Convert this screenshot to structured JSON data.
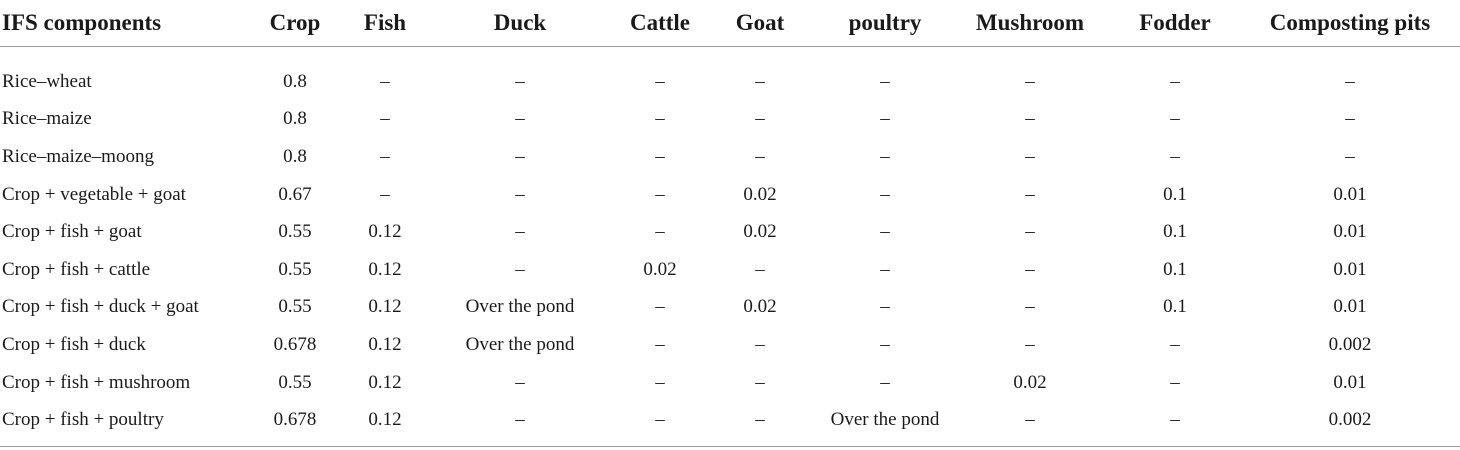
{
  "table": {
    "headers": [
      "IFS components",
      "Crop",
      "Fish",
      "Duck",
      "Cattle",
      "Goat",
      "poultry",
      "Mushroom",
      "Fodder",
      "Composting pits"
    ],
    "rows": [
      [
        "Rice–wheat",
        "0.8",
        "–",
        "–",
        "–",
        "–",
        "–",
        "–",
        "–",
        "–"
      ],
      [
        "Rice–maize",
        "0.8",
        "–",
        "–",
        "–",
        "–",
        "–",
        "–",
        "–",
        "–"
      ],
      [
        "Rice–maize–moong",
        "0.8",
        "–",
        "–",
        "–",
        "–",
        "–",
        "–",
        "–",
        "–"
      ],
      [
        "Crop + vegetable + goat",
        "0.67",
        "–",
        "–",
        "–",
        "0.02",
        "–",
        "–",
        "0.1",
        "0.01"
      ],
      [
        "Crop + fish + goat",
        "0.55",
        "0.12",
        "–",
        "–",
        "0.02",
        "–",
        "–",
        "0.1",
        "0.01"
      ],
      [
        "Crop + fish + cattle",
        "0.55",
        "0.12",
        "–",
        "0.02",
        "–",
        "–",
        "–",
        "0.1",
        "0.01"
      ],
      [
        "Crop + fish + duck + goat",
        "0.55",
        "0.12",
        "Over the pond",
        "–",
        "0.02",
        "–",
        "–",
        "0.1",
        "0.01"
      ],
      [
        "Crop + fish + duck",
        "0.678",
        "0.12",
        "Over the pond",
        "–",
        "–",
        "–",
        "–",
        "–",
        "0.002"
      ],
      [
        "Crop + fish + mushroom",
        "0.55",
        "0.12",
        "–",
        "–",
        "–",
        "–",
        "0.02",
        "–",
        "0.01"
      ],
      [
        "Crop + fish + poultry",
        "0.678",
        "0.12",
        "–",
        "–",
        "–",
        "Over the pond",
        "–",
        "–",
        "0.002"
      ]
    ]
  }
}
